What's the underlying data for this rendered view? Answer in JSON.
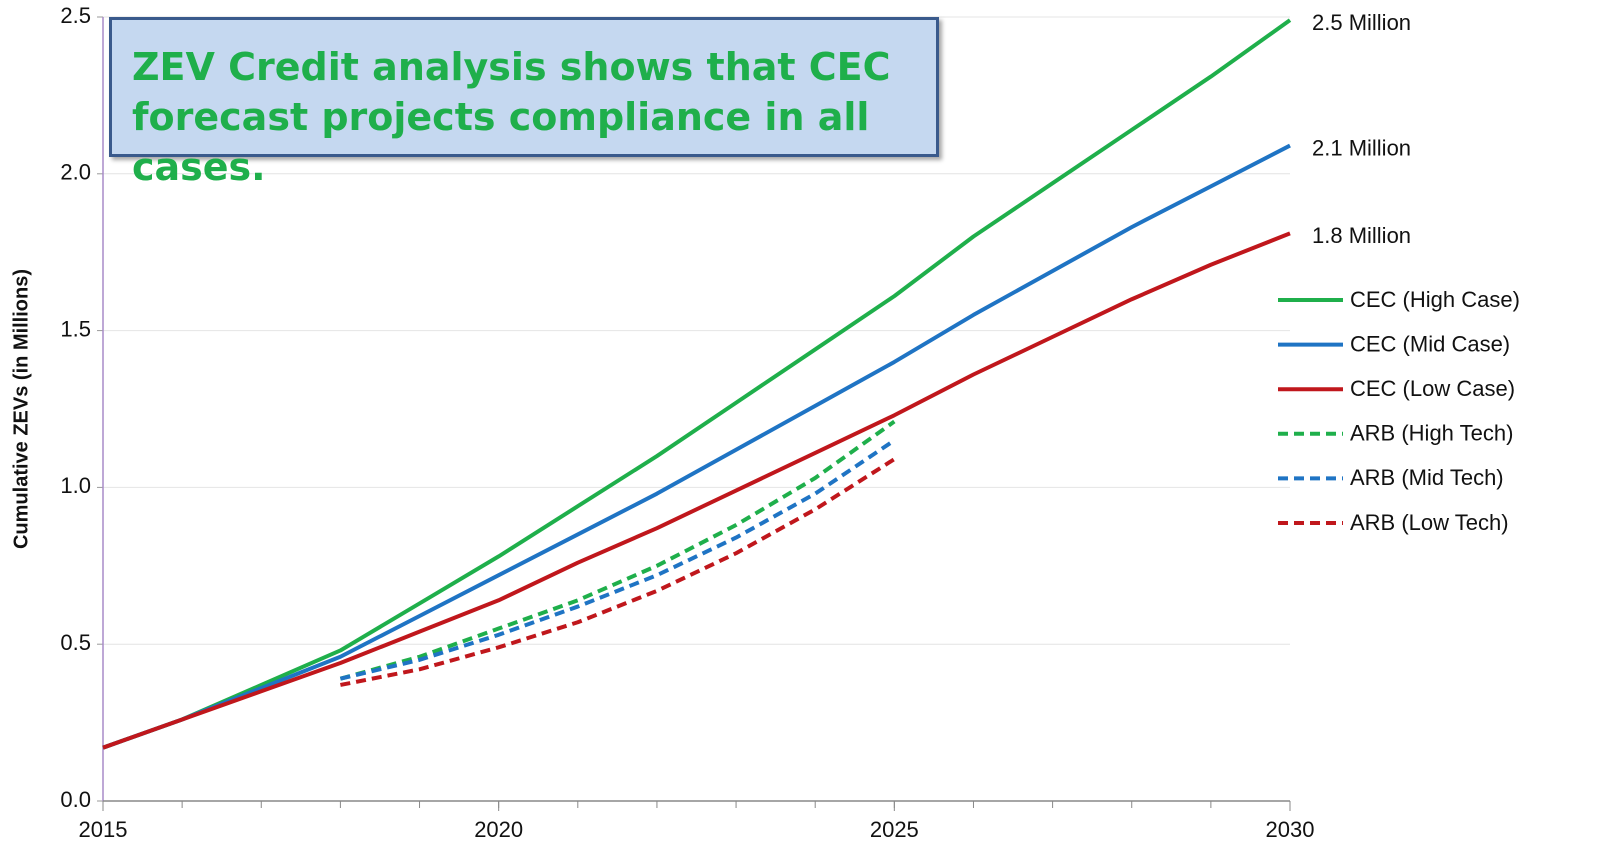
{
  "chart_data": {
    "type": "line",
    "annotation": "ZEV Credit analysis shows that CEC forecast projects compliance in all cases.",
    "y_label": "Cumulative ZEVs (in Millions)",
    "x": [
      2015,
      2016,
      2017,
      2018,
      2019,
      2020,
      2021,
      2022,
      2023,
      2024,
      2025,
      2026,
      2027,
      2028,
      2029,
      2030
    ],
    "xlim": [
      2015,
      2030
    ],
    "xticks": [
      2015,
      2020,
      2025,
      2030
    ],
    "ylim": [
      0,
      2.5
    ],
    "yticks": [
      {
        "value": 0,
        "label": "0.0"
      },
      0.5,
      {
        "value": 1,
        "label": "1.0"
      },
      1.5,
      {
        "value": 2,
        "label": "2.0"
      },
      2.5
    ],
    "grid": true,
    "legend": "right",
    "series": [
      {
        "name": "CEC (High Case)",
        "color": "#1faf4b",
        "dashed": false,
        "end_label": "2.5 Million",
        "values": [
          0.17,
          0.26,
          0.37,
          0.48,
          0.63,
          0.78,
          0.94,
          1.1,
          1.27,
          1.44,
          1.61,
          1.8,
          1.97,
          2.14,
          2.31,
          2.49
        ]
      },
      {
        "name": "CEC (Mid Case)",
        "color": "#1f74c4",
        "dashed": false,
        "end_label": "2.1 Million",
        "values": [
          0.17,
          0.26,
          0.36,
          0.46,
          0.59,
          0.72,
          0.85,
          0.98,
          1.12,
          1.26,
          1.4,
          1.55,
          1.69,
          1.83,
          1.96,
          2.09
        ]
      },
      {
        "name": "CEC (Low Case)",
        "color": "#c0171c",
        "dashed": false,
        "end_label": "1.8 Million",
        "values": [
          0.17,
          0.26,
          0.35,
          0.44,
          0.54,
          0.64,
          0.76,
          0.87,
          0.99,
          1.11,
          1.23,
          1.36,
          1.48,
          1.6,
          1.71,
          1.81
        ]
      },
      {
        "name": "ARB (High Tech)",
        "color": "#1faf4b",
        "dashed": true,
        "values": [
          null,
          null,
          null,
          0.39,
          0.46,
          0.55,
          0.64,
          0.75,
          0.88,
          1.03,
          1.21,
          null,
          null,
          null,
          null,
          null
        ]
      },
      {
        "name": "ARB (Mid Tech)",
        "color": "#1f74c4",
        "dashed": true,
        "values": [
          null,
          null,
          null,
          0.39,
          0.45,
          0.53,
          0.62,
          0.72,
          0.84,
          0.98,
          1.15,
          null,
          null,
          null,
          null,
          null
        ]
      },
      {
        "name": "ARB (Low Tech)",
        "color": "#c0171c",
        "dashed": true,
        "values": [
          null,
          null,
          null,
          0.37,
          0.42,
          0.49,
          0.57,
          0.67,
          0.79,
          0.93,
          1.09,
          null,
          null,
          null,
          null,
          null
        ]
      }
    ]
  }
}
